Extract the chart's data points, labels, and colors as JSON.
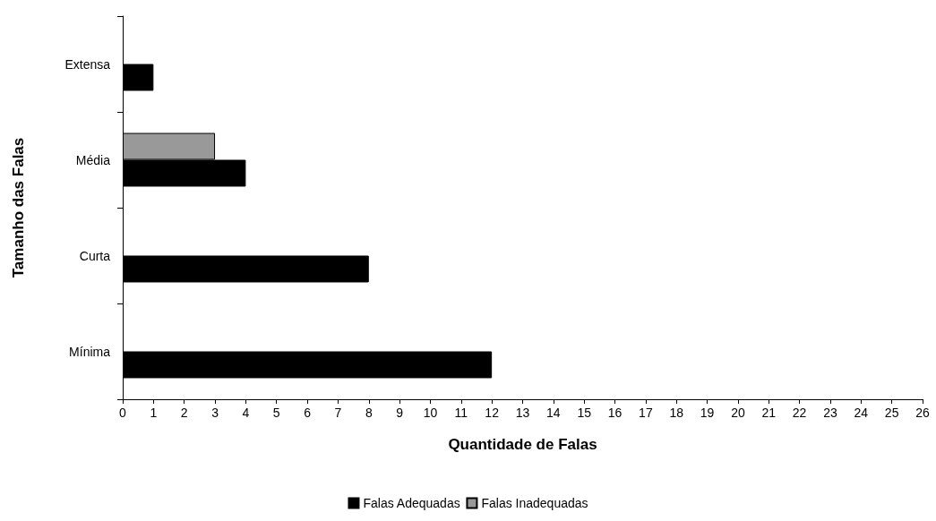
{
  "chart_data": {
    "type": "bar",
    "orientation": "horizontal",
    "xlabel": "Quantidade de Falas",
    "ylabel": "Tamanho das Falas",
    "categories": [
      "Extensa",
      "Média",
      "Curta",
      "Mínima"
    ],
    "series": [
      {
        "name": "Falas Adequadas",
        "color": "#000000",
        "values": [
          1,
          4,
          8,
          12
        ]
      },
      {
        "name": "Falas Inadequadas",
        "color": "#999999",
        "values": [
          null,
          3,
          null,
          null
        ]
      }
    ],
    "xlim": [
      0,
      26
    ],
    "xticks": [
      0,
      1,
      2,
      3,
      4,
      5,
      6,
      7,
      8,
      9,
      10,
      11,
      12,
      13,
      14,
      15,
      16,
      17,
      18,
      19,
      20,
      21,
      22,
      23,
      24,
      25,
      26
    ],
    "legend": "bottom"
  }
}
